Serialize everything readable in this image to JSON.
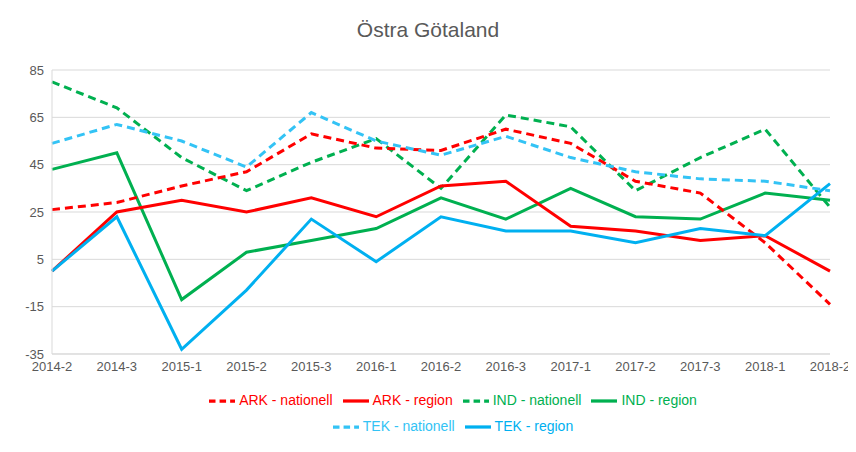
{
  "chart_data": {
    "type": "line",
    "title": "Östra Götaland",
    "categories": [
      "2014-2",
      "2014-3",
      "2015-1",
      "2015-2",
      "2015-3",
      "2016-1",
      "2016-2",
      "2016-3",
      "2017-1",
      "2017-2",
      "2017-3",
      "2018-1",
      "2018-2"
    ],
    "ylim": [
      -35,
      85
    ],
    "yticks": [
      -35,
      -15,
      5,
      25,
      45,
      65,
      85
    ],
    "grid": true,
    "legend": "bottom",
    "series": [
      {
        "name": "IND - region",
        "color": "#00B050",
        "line_style": "solid",
        "values": [
          43,
          50,
          -12,
          8,
          13,
          18,
          31,
          22,
          35,
          23,
          22,
          33,
          30
        ]
      },
      {
        "name": "IND - nationell",
        "color": "#00B050",
        "line_style": "dashed",
        "values": [
          80,
          69,
          48,
          34,
          46,
          56,
          35,
          66,
          61,
          34,
          48,
          60,
          27
        ]
      },
      {
        "name": "ARK - region",
        "color": "#FF0000",
        "line_style": "solid",
        "values": [
          0,
          25,
          30,
          25,
          31,
          23,
          36,
          38,
          19,
          17,
          13,
          15,
          0
        ]
      },
      {
        "name": "ARK - nationell",
        "color": "#FF0000",
        "line_style": "dashed",
        "values": [
          26,
          29,
          36,
          42,
          58,
          52,
          51,
          60,
          54,
          38,
          33,
          12,
          -14
        ]
      },
      {
        "name": "TEK - region",
        "color": "#00B0F0",
        "line_style": "solid",
        "values": [
          0,
          23,
          -33,
          -8,
          22,
          4,
          23,
          17,
          17,
          12,
          18,
          15,
          37
        ]
      },
      {
        "name": "TEK - nationell",
        "color": "#33C3F5",
        "line_style": "dashed",
        "values": [
          54,
          62,
          55,
          44,
          67,
          55,
          49,
          57,
          48,
          42,
          39,
          38,
          34
        ]
      }
    ]
  }
}
